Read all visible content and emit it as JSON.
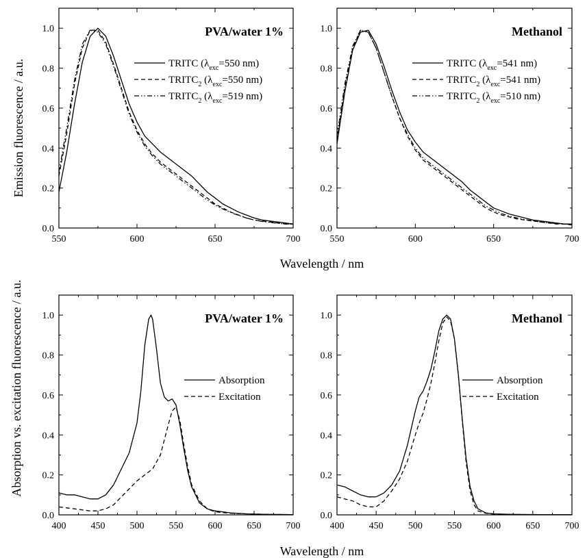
{
  "figure": {
    "top_ylabel": "Emission fluorescence / a.u.",
    "bottom_ylabel": "Absorption vs. excitation fluorescence / a.u.",
    "top_xlabel": "Wavelength / nm",
    "bottom_xlabel": "Wavelength / nm"
  },
  "chart_data": [
    {
      "type": "line",
      "panel": "top-left",
      "title": "PVA/water 1%",
      "xlim": [
        550,
        700
      ],
      "ylim": [
        0,
        1.1
      ],
      "xticks": [
        550,
        600,
        650,
        700
      ],
      "yticks": [
        0.0,
        0.2,
        0.4,
        0.6,
        0.8,
        1.0
      ],
      "legend_position": "upper right",
      "series": [
        {
          "name": "TRITC",
          "legend_parts": [
            "TRITC (λ",
            "exc",
            "=550 nm)"
          ],
          "style": "solid",
          "x": [
            550,
            555,
            560,
            565,
            570,
            575,
            580,
            585,
            590,
            595,
            600,
            605,
            610,
            615,
            620,
            625,
            630,
            635,
            640,
            645,
            650,
            655,
            660,
            665,
            670,
            675,
            680,
            685,
            690,
            695,
            700
          ],
          "y": [
            0.18,
            0.38,
            0.62,
            0.83,
            0.96,
            1.0,
            0.96,
            0.86,
            0.74,
            0.62,
            0.53,
            0.46,
            0.42,
            0.38,
            0.35,
            0.32,
            0.29,
            0.26,
            0.22,
            0.18,
            0.15,
            0.12,
            0.1,
            0.08,
            0.065,
            0.05,
            0.04,
            0.035,
            0.03,
            0.025,
            0.02
          ]
        },
        {
          "name": "TRITC2",
          "legend_parts": [
            "TRITC",
            "2",
            " (λ",
            "exc",
            "=550 nm)"
          ],
          "style": "dashed",
          "x": [
            550,
            555,
            560,
            565,
            570,
            575,
            580,
            585,
            590,
            595,
            600,
            605,
            610,
            615,
            620,
            625,
            630,
            635,
            640,
            645,
            650,
            655,
            660,
            665,
            670,
            675,
            680,
            685,
            690,
            695,
            700
          ],
          "y": [
            0.26,
            0.47,
            0.72,
            0.9,
            0.99,
            0.99,
            0.93,
            0.82,
            0.7,
            0.58,
            0.49,
            0.42,
            0.37,
            0.33,
            0.3,
            0.27,
            0.24,
            0.21,
            0.18,
            0.15,
            0.12,
            0.1,
            0.08,
            0.065,
            0.05,
            0.04,
            0.035,
            0.03,
            0.025,
            0.02,
            0.02
          ]
        },
        {
          "name": "TRITC2",
          "legend_parts": [
            "TRITC",
            "2",
            " (λ",
            "exc",
            "=519 nm)"
          ],
          "style": "dashdotdot",
          "x": [
            550,
            555,
            560,
            565,
            570,
            575,
            580,
            585,
            590,
            595,
            600,
            605,
            610,
            615,
            620,
            625,
            630,
            635,
            640,
            645,
            650,
            655,
            660,
            665,
            670,
            675,
            680,
            685,
            690,
            695,
            700
          ],
          "y": [
            0.28,
            0.5,
            0.74,
            0.92,
            0.99,
            0.98,
            0.92,
            0.81,
            0.69,
            0.57,
            0.48,
            0.41,
            0.36,
            0.32,
            0.29,
            0.26,
            0.23,
            0.2,
            0.17,
            0.14,
            0.115,
            0.095,
            0.078,
            0.063,
            0.05,
            0.04,
            0.033,
            0.028,
            0.024,
            0.02,
            0.02
          ]
        }
      ]
    },
    {
      "type": "line",
      "panel": "top-right",
      "title": "Methanol",
      "xlim": [
        550,
        700
      ],
      "ylim": [
        0,
        1.1
      ],
      "xticks": [
        550,
        600,
        650,
        700
      ],
      "yticks": [
        0.0,
        0.2,
        0.4,
        0.6,
        0.8,
        1.0
      ],
      "legend_position": "upper right",
      "series": [
        {
          "name": "TRITC",
          "legend_parts": [
            "TRITC (λ",
            "exc",
            "=541 nm)"
          ],
          "style": "solid",
          "x": [
            550,
            555,
            560,
            565,
            570,
            575,
            580,
            585,
            590,
            595,
            600,
            605,
            610,
            615,
            620,
            625,
            630,
            635,
            640,
            645,
            650,
            655,
            660,
            665,
            670,
            675,
            680,
            685,
            690,
            695,
            700
          ],
          "y": [
            0.42,
            0.68,
            0.89,
            0.98,
            0.99,
            0.92,
            0.81,
            0.69,
            0.58,
            0.49,
            0.43,
            0.38,
            0.35,
            0.32,
            0.29,
            0.26,
            0.23,
            0.19,
            0.16,
            0.13,
            0.1,
            0.085,
            0.07,
            0.06,
            0.05,
            0.04,
            0.035,
            0.03,
            0.025,
            0.02,
            0.02
          ]
        },
        {
          "name": "TRITC2",
          "legend_parts": [
            "TRITC",
            "2",
            " (λ",
            "exc",
            "=541 nm)"
          ],
          "style": "dashed",
          "x": [
            550,
            555,
            560,
            565,
            570,
            575,
            580,
            585,
            590,
            595,
            600,
            605,
            610,
            615,
            620,
            625,
            630,
            635,
            640,
            645,
            650,
            655,
            660,
            665,
            670,
            675,
            680,
            685,
            690,
            695,
            700
          ],
          "y": [
            0.44,
            0.7,
            0.9,
            0.99,
            0.98,
            0.9,
            0.78,
            0.66,
            0.55,
            0.46,
            0.39,
            0.34,
            0.31,
            0.28,
            0.25,
            0.22,
            0.19,
            0.16,
            0.13,
            0.1,
            0.08,
            0.065,
            0.055,
            0.045,
            0.04,
            0.035,
            0.03,
            0.025,
            0.02,
            0.02,
            0.015
          ]
        },
        {
          "name": "TRITC2",
          "legend_parts": [
            "TRITC",
            "2",
            " (λ",
            "exc",
            "=510 nm)"
          ],
          "style": "dashdotdot",
          "x": [
            550,
            555,
            560,
            565,
            570,
            575,
            580,
            585,
            590,
            595,
            600,
            605,
            610,
            615,
            620,
            625,
            630,
            635,
            640,
            645,
            650,
            655,
            660,
            665,
            670,
            675,
            680,
            685,
            690,
            695,
            700
          ],
          "y": [
            0.46,
            0.72,
            0.91,
            0.99,
            0.98,
            0.9,
            0.78,
            0.66,
            0.55,
            0.47,
            0.4,
            0.35,
            0.32,
            0.29,
            0.26,
            0.23,
            0.2,
            0.17,
            0.14,
            0.11,
            0.09,
            0.072,
            0.06,
            0.05,
            0.042,
            0.036,
            0.03,
            0.026,
            0.022,
            0.02,
            0.018
          ]
        }
      ]
    },
    {
      "type": "line",
      "panel": "bottom-left",
      "title": "PVA/water 1%",
      "xlim": [
        400,
        700
      ],
      "ylim": [
        0,
        1.1
      ],
      "xticks": [
        400,
        450,
        500,
        550,
        600,
        650,
        700
      ],
      "yticks": [
        0.0,
        0.2,
        0.4,
        0.6,
        0.8,
        1.0
      ],
      "legend_position": "center right",
      "series": [
        {
          "name": "Absorption",
          "legend_parts": [
            "Absorption"
          ],
          "style": "solid",
          "x": [
            400,
            410,
            420,
            430,
            440,
            450,
            460,
            470,
            480,
            490,
            500,
            505,
            510,
            515,
            518,
            520,
            525,
            530,
            535,
            540,
            545,
            550,
            555,
            560,
            565,
            570,
            580,
            590,
            600,
            620,
            640,
            660,
            680,
            700
          ],
          "y": [
            0.11,
            0.1,
            0.1,
            0.09,
            0.08,
            0.08,
            0.1,
            0.15,
            0.23,
            0.31,
            0.46,
            0.62,
            0.85,
            0.98,
            1.0,
            0.98,
            0.83,
            0.66,
            0.59,
            0.57,
            0.58,
            0.55,
            0.45,
            0.33,
            0.22,
            0.14,
            0.06,
            0.03,
            0.02,
            0.01,
            0.005,
            0.003,
            0.002,
            0.001
          ]
        },
        {
          "name": "Excitation",
          "legend_parts": [
            "Excitation"
          ],
          "style": "dashed",
          "x": [
            400,
            410,
            420,
            430,
            440,
            450,
            460,
            470,
            480,
            490,
            500,
            510,
            520,
            530,
            540,
            545,
            550,
            555,
            560,
            565,
            570,
            580,
            590,
            600,
            620,
            640,
            660,
            680,
            700
          ],
          "y": [
            0.04,
            0.035,
            0.03,
            0.025,
            0.02,
            0.02,
            0.03,
            0.05,
            0.09,
            0.13,
            0.17,
            0.2,
            0.23,
            0.3,
            0.45,
            0.52,
            0.54,
            0.47,
            0.35,
            0.24,
            0.15,
            0.07,
            0.03,
            0.015,
            0.008,
            0.005,
            0.003,
            0.002,
            0.001
          ]
        }
      ]
    },
    {
      "type": "line",
      "panel": "bottom-right",
      "title": "Methanol",
      "xlim": [
        400,
        700
      ],
      "ylim": [
        0,
        1.1
      ],
      "xticks": [
        400,
        450,
        500,
        550,
        600,
        650,
        700
      ],
      "yticks": [
        0.0,
        0.2,
        0.4,
        0.6,
        0.8,
        1.0
      ],
      "legend_position": "center right",
      "series": [
        {
          "name": "Absorption",
          "legend_parts": [
            "Absorption"
          ],
          "style": "solid",
          "x": [
            400,
            410,
            420,
            430,
            440,
            450,
            460,
            470,
            480,
            490,
            500,
            505,
            510,
            515,
            520,
            525,
            530,
            535,
            540,
            545,
            550,
            555,
            560,
            565,
            570,
            575,
            580,
            590,
            600,
            620,
            640,
            660,
            680,
            700
          ],
          "y": [
            0.15,
            0.14,
            0.12,
            0.1,
            0.09,
            0.09,
            0.11,
            0.15,
            0.22,
            0.35,
            0.52,
            0.59,
            0.62,
            0.67,
            0.73,
            0.82,
            0.92,
            0.98,
            1.0,
            0.98,
            0.88,
            0.7,
            0.48,
            0.28,
            0.14,
            0.07,
            0.03,
            0.01,
            0.005,
            0.003,
            0.002,
            0.001,
            0.001,
            0.001
          ]
        },
        {
          "name": "Excitation",
          "legend_parts": [
            "Excitation"
          ],
          "style": "dashed",
          "x": [
            400,
            410,
            420,
            430,
            440,
            450,
            460,
            470,
            480,
            490,
            500,
            505,
            510,
            515,
            520,
            525,
            530,
            535,
            540,
            545,
            550,
            555,
            560,
            565,
            570,
            575,
            580,
            590,
            600,
            620,
            640,
            660,
            680,
            700
          ],
          "y": [
            0.09,
            0.08,
            0.07,
            0.05,
            0.04,
            0.04,
            0.07,
            0.12,
            0.18,
            0.27,
            0.4,
            0.46,
            0.51,
            0.58,
            0.66,
            0.76,
            0.87,
            0.96,
            0.99,
            0.97,
            0.88,
            0.7,
            0.47,
            0.26,
            0.12,
            0.05,
            0.02,
            0.008,
            0.004,
            0.002,
            0.001,
            0.001,
            0.001,
            0.001
          ]
        }
      ]
    }
  ]
}
